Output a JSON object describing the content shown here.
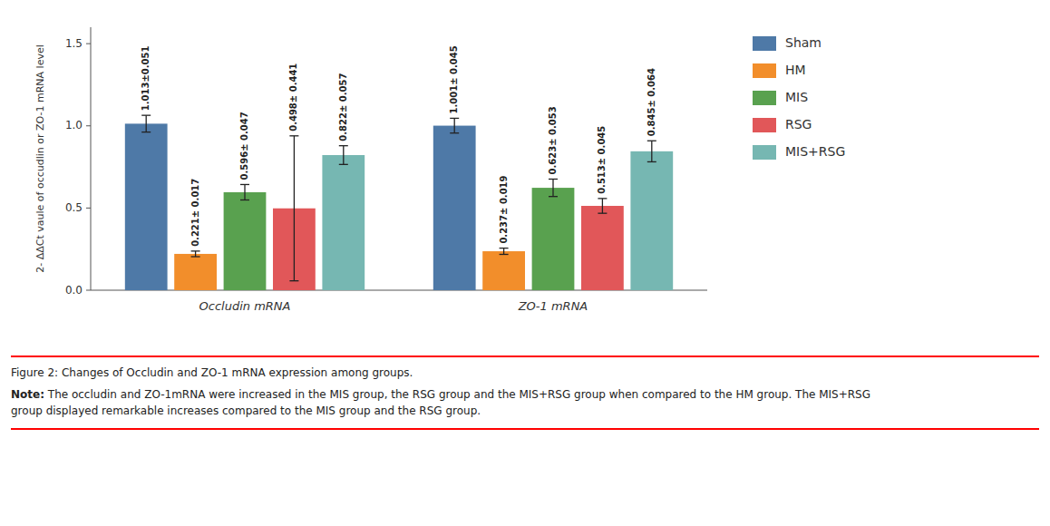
{
  "chart_data": {
    "type": "bar",
    "categories": [
      "Occludin mRNA",
      "ZO-1 mRNA"
    ],
    "series": [
      {
        "name": "Sham",
        "values": [
          1.013,
          1.001
        ],
        "errors": [
          0.051,
          0.045
        ],
        "value_labels": [
          "1.013±0.051",
          "1.001± 0.045"
        ]
      },
      {
        "name": "HM",
        "values": [
          0.221,
          0.237
        ],
        "errors": [
          0.017,
          0.019
        ],
        "value_labels": [
          "0.221± 0.017",
          "0.237± 0.019"
        ]
      },
      {
        "name": "MIS",
        "values": [
          0.596,
          0.623
        ],
        "errors": [
          0.047,
          0.053
        ],
        "value_labels": [
          "0.596± 0.047",
          "0.623± 0.053"
        ]
      },
      {
        "name": "RSG",
        "values": [
          0.498,
          0.513
        ],
        "errors": [
          0.441,
          0.045
        ],
        "value_labels": [
          "0.498± 0.441",
          "0.513± 0.045"
        ]
      },
      {
        "name": "MIS+RSG",
        "values": [
          0.822,
          0.845
        ],
        "errors": [
          0.057,
          0.064
        ],
        "value_labels": [
          "0.822± 0.057",
          "0.845± 0.064"
        ]
      }
    ],
    "ylim": [
      0.0,
      1.6
    ],
    "yticks": [
      {
        "value": 0,
        "label": "0.0"
      },
      0.5,
      {
        "value": 1,
        "label": "1.0"
      },
      1.5
    ],
    "y_label": "2- ΔΔCt vaule of occudlin or ZO-1 mRNA level",
    "annotations": [
      "Figure 2: Changes of Occludin and ZO-1 mRNA expression among groups.",
      "Note:",
      "The occludin and ZO-1mRNA were increased in the MIS group, the RSG group and the MIS+RSG group when compared to the HM group. The MIS+RSG\ngroup displayed remarkable increases compared to the MIS group and the RSG group."
    ],
    "data_labels": true,
    "grid": false,
    "legend": "right"
  }
}
